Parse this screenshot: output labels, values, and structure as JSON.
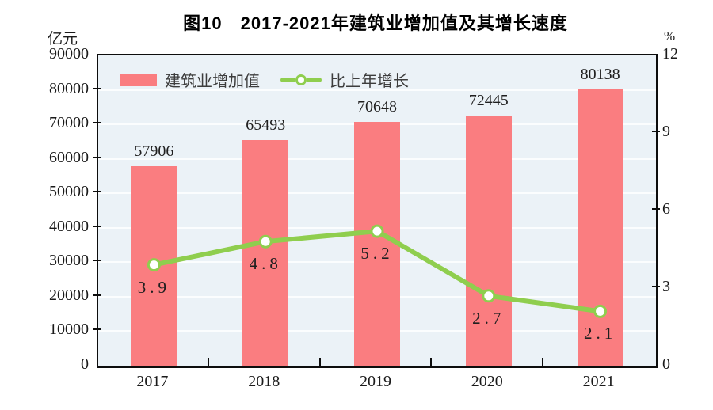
{
  "title": "图10　2017-2021年建筑业增加值及其增长速度",
  "left_axis_unit": "亿元",
  "right_axis_unit": "%",
  "legend": {
    "bar_label": "建筑业增加值",
    "line_label": "比上年增长"
  },
  "chart_data": {
    "type": "bar",
    "subtype": "dual-axis bar + line combo",
    "title": "图10　2017-2021年建筑业增加值及其增长速度",
    "categories": [
      "2017",
      "2018",
      "2019",
      "2020",
      "2021"
    ],
    "series": [
      {
        "name": "建筑业增加值",
        "type": "bar",
        "axis": "left",
        "unit": "亿元",
        "values": [
          57906,
          65493,
          70648,
          72445,
          80138
        ],
        "color": "#fa7d80"
      },
      {
        "name": "比上年增长",
        "type": "line",
        "axis": "right",
        "unit": "%",
        "values": [
          3.9,
          4.8,
          5.2,
          2.7,
          2.1
        ],
        "color": "#8fce4e",
        "marker": "white-circle-green-ring"
      }
    ],
    "left_axis": {
      "label": "亿元",
      "min": 0,
      "max": 90000,
      "step": 10000,
      "ticks": [
        0,
        10000,
        20000,
        30000,
        40000,
        50000,
        60000,
        70000,
        80000,
        90000
      ]
    },
    "right_axis": {
      "label": "%",
      "min": 0,
      "max": 12,
      "step": 3,
      "ticks": [
        0,
        3,
        6,
        9,
        12
      ]
    },
    "grid": true,
    "legend_position": "top-inside-left",
    "plot_background": "#ebf2f7",
    "gridline_color": "#fbfdfe",
    "axis_color": "#0d0d0d",
    "label_color": "#1f1f1f"
  },
  "colors": {
    "bar": "#fa7d80",
    "line": "#8fce4e",
    "marker_fill": "#ffffff",
    "plot_bg": "#ebf2f7",
    "legend_text": "#3d3d3d"
  }
}
